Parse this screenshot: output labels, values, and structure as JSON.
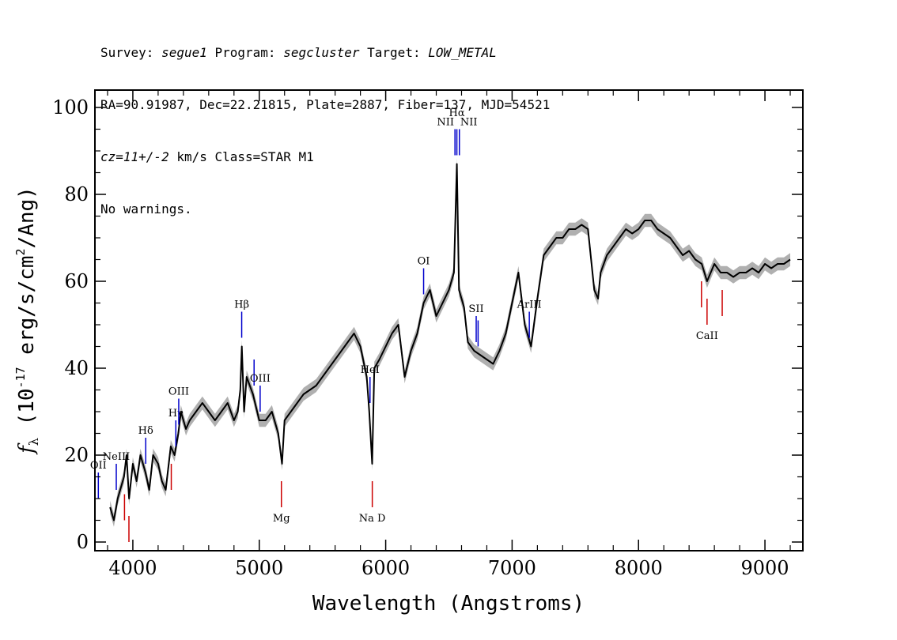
{
  "header": {
    "line1": {
      "survey_label": "Survey: ",
      "survey": "segue1",
      "program_label": " Program: ",
      "program": "segcluster",
      "target_label": " Target: ",
      "target": "LOW_METAL"
    },
    "line2": "RA=90.91987, Dec=22.21815, Plate=2887, Fiber=137, MJD=54521",
    "line3": {
      "cz": "cz=11+/-2",
      "rest": " km/s Class=STAR M1"
    },
    "line4": "No warnings."
  },
  "chart_data": {
    "type": "line",
    "xlabel": "Wavelength (Angstroms)",
    "ylabel": "fλ (10⁻¹⁷ erg/s/cm²/Ang)",
    "xlim": [
      3700,
      9300
    ],
    "ylim": [
      -2,
      104
    ],
    "x_ticks": [
      "4000",
      "5000",
      "6000",
      "7000",
      "8000",
      "9000"
    ],
    "x_tick_values": [
      4000,
      5000,
      6000,
      7000,
      8000,
      9000
    ],
    "y_ticks": [
      "0",
      "20",
      "40",
      "60",
      "80",
      "100"
    ],
    "y_tick_values": [
      0,
      20,
      40,
      60,
      80,
      100
    ],
    "series_color": "#000000",
    "error_color": "#b0b0b0",
    "emission_color": "#0000cc",
    "absorption_color": "#cc0000",
    "spectrum": {
      "x": [
        3820,
        3850,
        3880,
        3900,
        3930,
        3950,
        3970,
        4000,
        4030,
        4060,
        4100,
        4130,
        4160,
        4200,
        4230,
        4260,
        4300,
        4330,
        4360,
        4380,
        4420,
        4450,
        4500,
        4550,
        4600,
        4650,
        4700,
        4750,
        4800,
        4830,
        4850,
        4862,
        4880,
        4900,
        4950,
        5000,
        5050,
        5100,
        5150,
        5180,
        5200,
        5250,
        5300,
        5350,
        5400,
        5450,
        5500,
        5550,
        5600,
        5650,
        5700,
        5750,
        5800,
        5850,
        5870,
        5893,
        5910,
        5950,
        6000,
        6050,
        6100,
        6150,
        6200,
        6250,
        6300,
        6350,
        6400,
        6450,
        6500,
        6540,
        6563,
        6580,
        6620,
        6650,
        6700,
        6750,
        6800,
        6850,
        6900,
        6950,
        7000,
        7050,
        7100,
        7150,
        7200,
        7250,
        7300,
        7350,
        7400,
        7450,
        7500,
        7550,
        7600,
        7650,
        7680,
        7700,
        7750,
        7800,
        7850,
        7900,
        7950,
        8000,
        8050,
        8100,
        8150,
        8200,
        8250,
        8300,
        8350,
        8400,
        8450,
        8500,
        8542,
        8600,
        8650,
        8700,
        8750,
        8800,
        8850,
        8900,
        8950,
        9000,
        9050,
        9100,
        9150,
        9200
      ],
      "y": [
        8,
        5,
        10,
        12,
        15,
        20,
        10,
        18,
        14,
        20,
        16,
        12,
        20,
        18,
        14,
        12,
        22,
        20,
        25,
        30,
        26,
        28,
        30,
        32,
        30,
        28,
        30,
        32,
        28,
        30,
        35,
        45,
        30,
        38,
        34,
        28,
        28,
        30,
        25,
        18,
        28,
        30,
        32,
        34,
        35,
        36,
        38,
        40,
        42,
        44,
        46,
        48,
        45,
        38,
        30,
        18,
        40,
        42,
        45,
        48,
        50,
        38,
        44,
        48,
        55,
        58,
        52,
        55,
        58,
        62,
        87,
        58,
        54,
        46,
        44,
        43,
        42,
        41,
        44,
        48,
        55,
        62,
        50,
        45,
        56,
        66,
        68,
        70,
        70,
        72,
        72,
        73,
        72,
        58,
        56,
        62,
        66,
        68,
        70,
        72,
        71,
        72,
        74,
        74,
        72,
        71,
        70,
        68,
        66,
        67,
        65,
        64,
        60,
        64,
        62,
        62,
        61,
        62,
        62,
        63,
        62,
        64,
        63,
        64,
        64,
        65
      ]
    },
    "emission_lines": [
      {
        "label": "OII",
        "x": 3727
      },
      {
        "label": "NeIII",
        "x": 3869
      },
      {
        "label": "Hδ",
        "x": 4102
      },
      {
        "label": "Hγ",
        "x": 4340
      },
      {
        "label": "OIII",
        "x": 4363
      },
      {
        "label": "Hβ",
        "x": 4861
      },
      {
        "label": "",
        "x": 4959
      },
      {
        "label": "OIII",
        "x": 5007
      },
      {
        "label": "HeI",
        "x": 5876
      },
      {
        "label": "OI",
        "x": 6300
      },
      {
        "label": "NII",
        "x": 6548
      },
      {
        "label": "Hα",
        "x": 6563
      },
      {
        "label": "NII",
        "x": 6583
      },
      {
        "label": "SII",
        "x": 6716
      },
      {
        "label": "",
        "x": 6731
      },
      {
        "label": "ArIII",
        "x": 7136
      }
    ],
    "absorption_lines": [
      {
        "label": "",
        "x": 3934
      },
      {
        "label": "",
        "x": 3969
      },
      {
        "label": "",
        "x": 4304
      },
      {
        "label": "Mg",
        "x": 5175
      },
      {
        "label": "Na  D",
        "x": 5894
      },
      {
        "label": "",
        "x": 8498
      },
      {
        "label": "CaII",
        "x": 8542
      },
      {
        "label": "",
        "x": 8662
      }
    ]
  }
}
